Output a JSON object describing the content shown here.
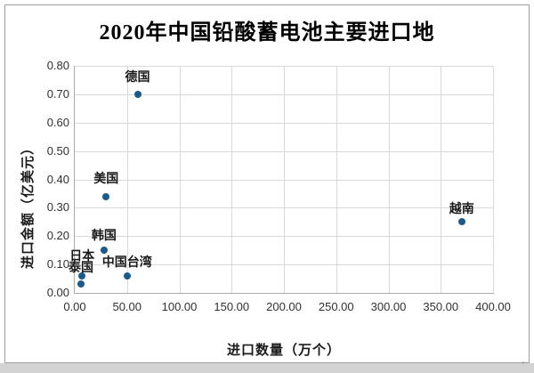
{
  "chart_data": {
    "type": "scatter",
    "title": "2020年中国铅酸蓄电池主要进口地",
    "xlabel": "进口数量（万个）",
    "ylabel": "进口金额（亿美元）",
    "xlim": [
      0,
      400
    ],
    "ylim": [
      0,
      0.8
    ],
    "x_ticks": [
      "0.00",
      "50.00",
      "100.00",
      "150.00",
      "200.00",
      "250.00",
      "300.00",
      "350.00",
      "400.00"
    ],
    "y_ticks": [
      "0.00",
      "0.10",
      "0.20",
      "0.30",
      "0.40",
      "0.50",
      "0.60",
      "0.70",
      "0.80"
    ],
    "grid": true,
    "legend": false,
    "points": [
      {
        "label": "德国",
        "x": 60,
        "y": 0.7
      },
      {
        "label": "美国",
        "x": 30,
        "y": 0.34
      },
      {
        "label": "韩国",
        "x": 28,
        "y": 0.15
      },
      {
        "label": "日本",
        "x": 7,
        "y": 0.06
      },
      {
        "label": "泰国",
        "x": 6,
        "y": 0.03
      },
      {
        "label": "中国台湾",
        "x": 50,
        "y": 0.06
      },
      {
        "label": "越南",
        "x": 370,
        "y": 0.25
      }
    ]
  },
  "colors": {
    "marker": "#1a5a8c",
    "gridline": "#d9d9d9",
    "axis_line": "#ababab",
    "frame_border": "#9f9f9f",
    "bottom_strip": "#d3d3d3",
    "tick_text": "#303030",
    "label_text": "#1a1a1a"
  },
  "decorations": {
    "corner_mark": "←"
  }
}
